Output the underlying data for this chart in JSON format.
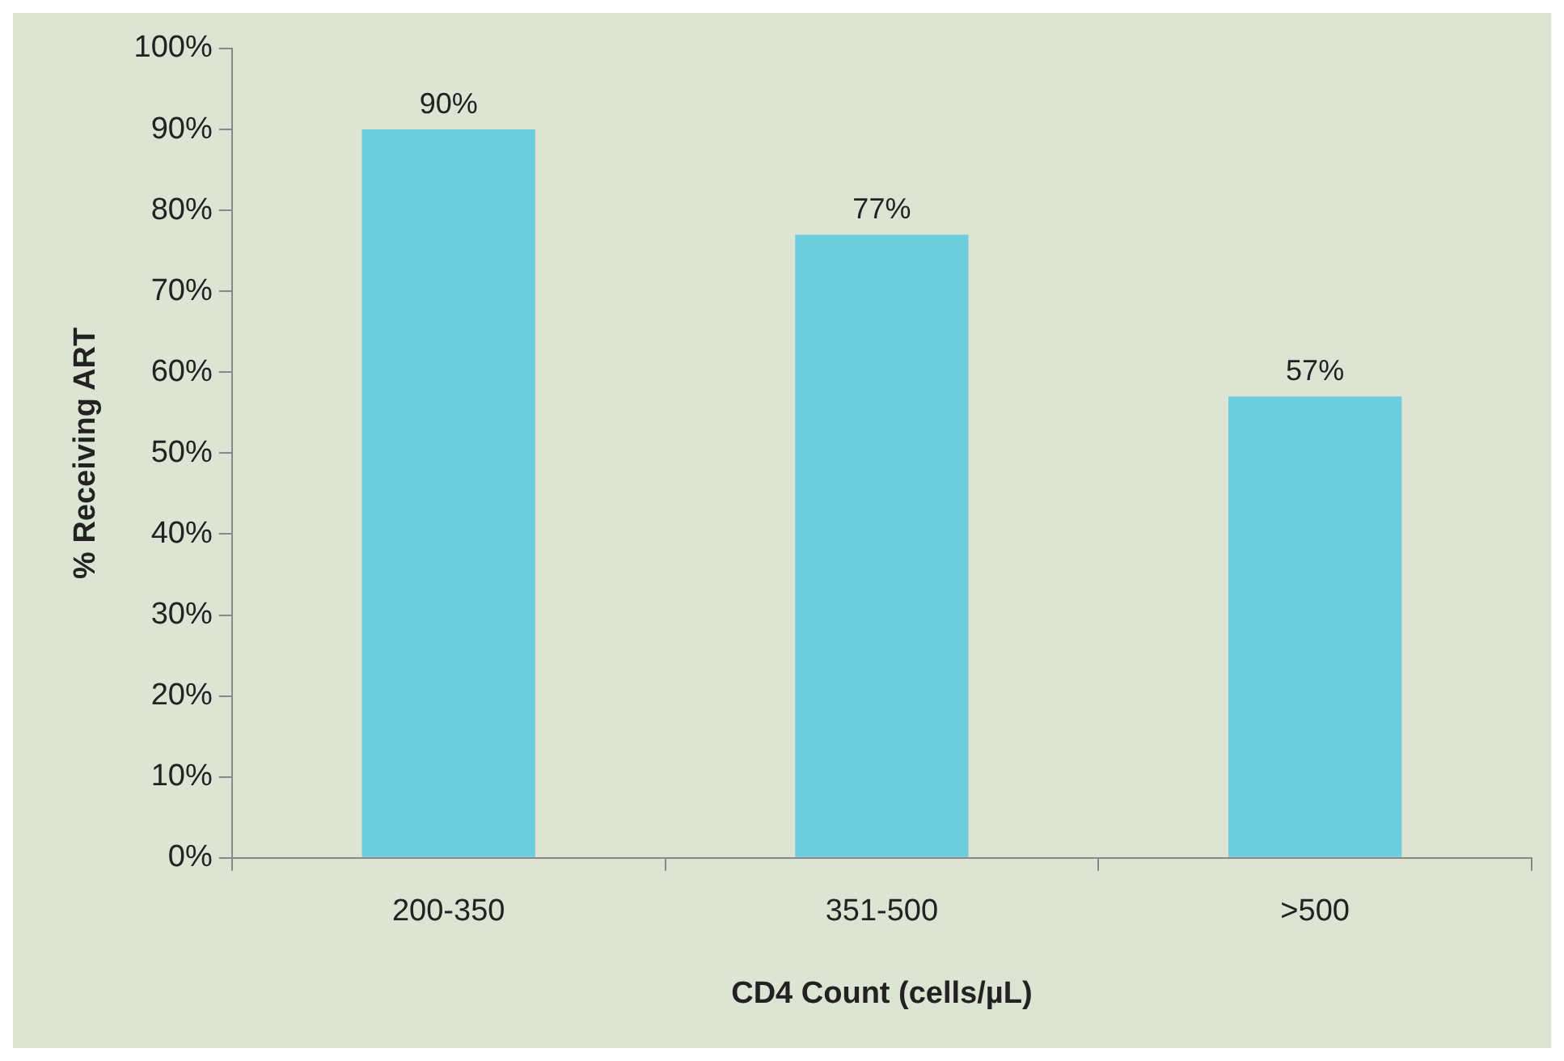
{
  "chart_data": {
    "type": "bar",
    "xlabel": "CD4 Count (cells/µL)",
    "ylabel": "% Receiving ART",
    "categories": [
      "200-350",
      "351-500",
      ">500"
    ],
    "values": [
      90,
      77,
      57
    ],
    "color": "#6ecddd",
    "value_labels": [
      "90%",
      "77%",
      "57%"
    ],
    "ylim": [
      0,
      100
    ],
    "yticks": [
      {
        "value": 0,
        "label": "0%"
      },
      {
        "value": 10,
        "label": "10%"
      },
      {
        "value": 20,
        "label": "20%"
      },
      {
        "value": 30,
        "label": "30%"
      },
      {
        "value": 40,
        "label": "40%"
      },
      {
        "value": 50,
        "label": "50%"
      },
      {
        "value": 60,
        "label": "60%"
      },
      {
        "value": 70,
        "label": "70%"
      },
      {
        "value": 80,
        "label": "80%"
      },
      {
        "value": 90,
        "label": "90%"
      },
      {
        "value": 100,
        "label": "100%"
      }
    ],
    "grid": false,
    "legend": false
  }
}
